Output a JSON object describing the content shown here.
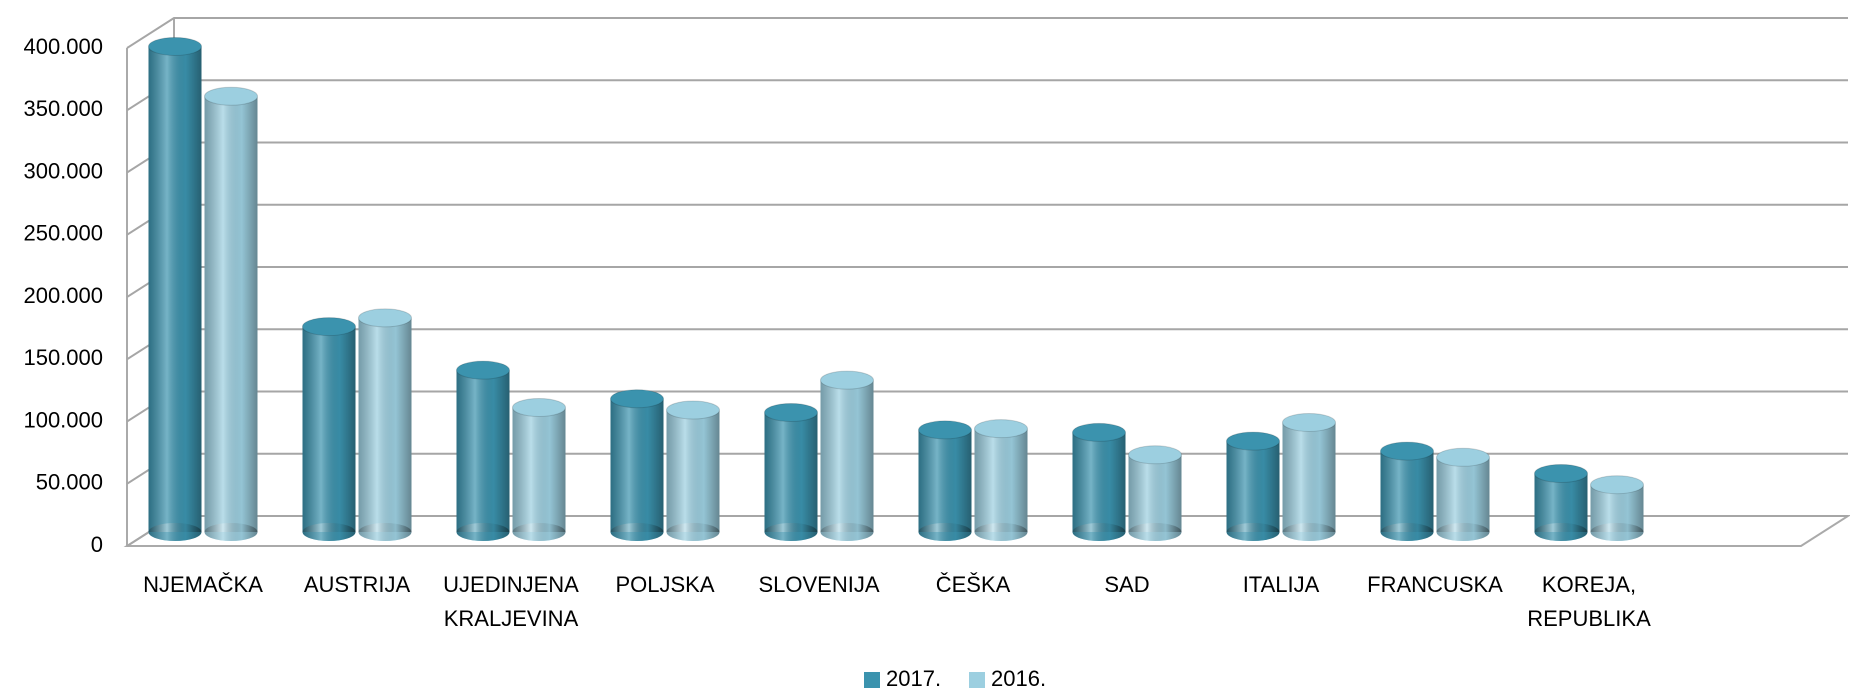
{
  "chart_data": {
    "type": "bar3d",
    "categories": [
      "NJEMAČKA",
      "AUSTRIJA",
      "UJEDINJENA KRALJEVINA",
      "POLJSKA",
      "SLOVENIJA",
      "ČEŠKA",
      "SAD",
      "ITALIJA",
      "FRANCUSKA",
      "KOREJA, REPUBLIKA"
    ],
    "series": [
      {
        "name": "2017.",
        "color": "#3b93ae",
        "values": [
          390000,
          165000,
          130000,
          107000,
          96000,
          82000,
          80000,
          73000,
          65000,
          47000
        ]
      },
      {
        "name": "2016.",
        "color": "#9ccfe0",
        "values": [
          350000,
          172000,
          100000,
          98000,
          122000,
          83000,
          62000,
          88000,
          60000,
          38000
        ]
      }
    ],
    "ylim": [
      0,
      400000
    ],
    "yticks": [
      0,
      {
        "value": 50000,
        "label": "50.000"
      },
      {
        "value": 100000,
        "label": "100.000"
      },
      {
        "value": 150000,
        "label": "150.000"
      },
      {
        "value": 200000,
        "label": "200.000"
      },
      {
        "value": 250000,
        "label": "250.000"
      },
      {
        "value": 300000,
        "label": "300.000"
      },
      {
        "value": 350000,
        "label": "350.000"
      },
      {
        "value": 400000,
        "label": "400.000"
      }
    ],
    "grid": true,
    "legend": "bottom"
  }
}
